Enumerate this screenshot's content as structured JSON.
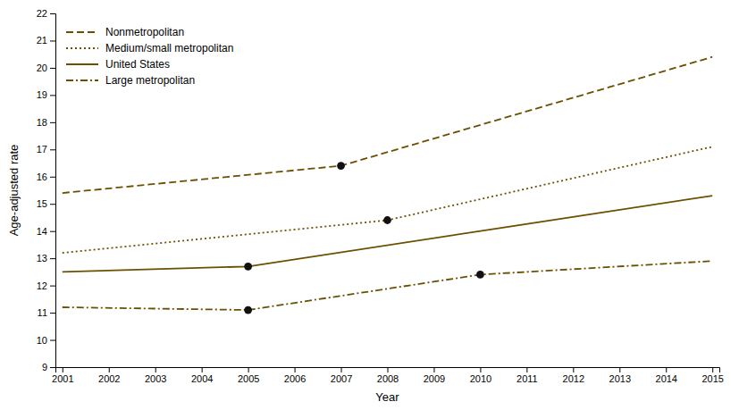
{
  "chart_data": {
    "type": "line",
    "xlabel": "Year",
    "ylabel": "Age-adjusted rate",
    "xlim": [
      2000.85,
      2015.15
    ],
    "ylim": [
      9,
      22
    ],
    "xticks": [
      2001,
      2002,
      2003,
      2004,
      2005,
      2006,
      2007,
      2008,
      2009,
      2010,
      2011,
      2012,
      2013,
      2014,
      2015
    ],
    "yticks": [
      9,
      10,
      11,
      12,
      13,
      14,
      15,
      16,
      17,
      18,
      19,
      20,
      21,
      22
    ],
    "color": "#6b5000",
    "grid": false,
    "legend": "upper left",
    "series": [
      {
        "name": "Nonmetropolitan",
        "line_style": "dashed",
        "x": [
          2001,
          2007,
          2015
        ],
        "values": [
          15.4,
          16.4,
          20.4
        ],
        "joinpoints": {
          "color": "#111111",
          "x": [
            2007
          ],
          "values": [
            16.4
          ]
        }
      },
      {
        "name": "Medium/small metropolitan",
        "line_style": "dotted",
        "x": [
          2001,
          2008,
          2015
        ],
        "values": [
          13.2,
          14.4,
          17.1
        ],
        "joinpoints": {
          "color": "#111111",
          "x": [
            2008
          ],
          "values": [
            14.4
          ]
        }
      },
      {
        "name": "United States",
        "line_style": "solid",
        "x": [
          2001,
          2005,
          2015
        ],
        "values": [
          12.5,
          12.7,
          15.3
        ],
        "joinpoints": {
          "color": "#111111",
          "x": [
            2005
          ],
          "values": [
            12.7
          ]
        }
      },
      {
        "name": "Large metropolitan",
        "line_style": "dashdot",
        "x": [
          2001,
          2005,
          2010,
          2015
        ],
        "values": [
          11.2,
          11.1,
          12.4,
          12.9
        ],
        "joinpoints": {
          "color": "#111111",
          "x": [
            2005,
            2010
          ],
          "values": [
            11.1,
            12.4
          ]
        }
      }
    ]
  }
}
